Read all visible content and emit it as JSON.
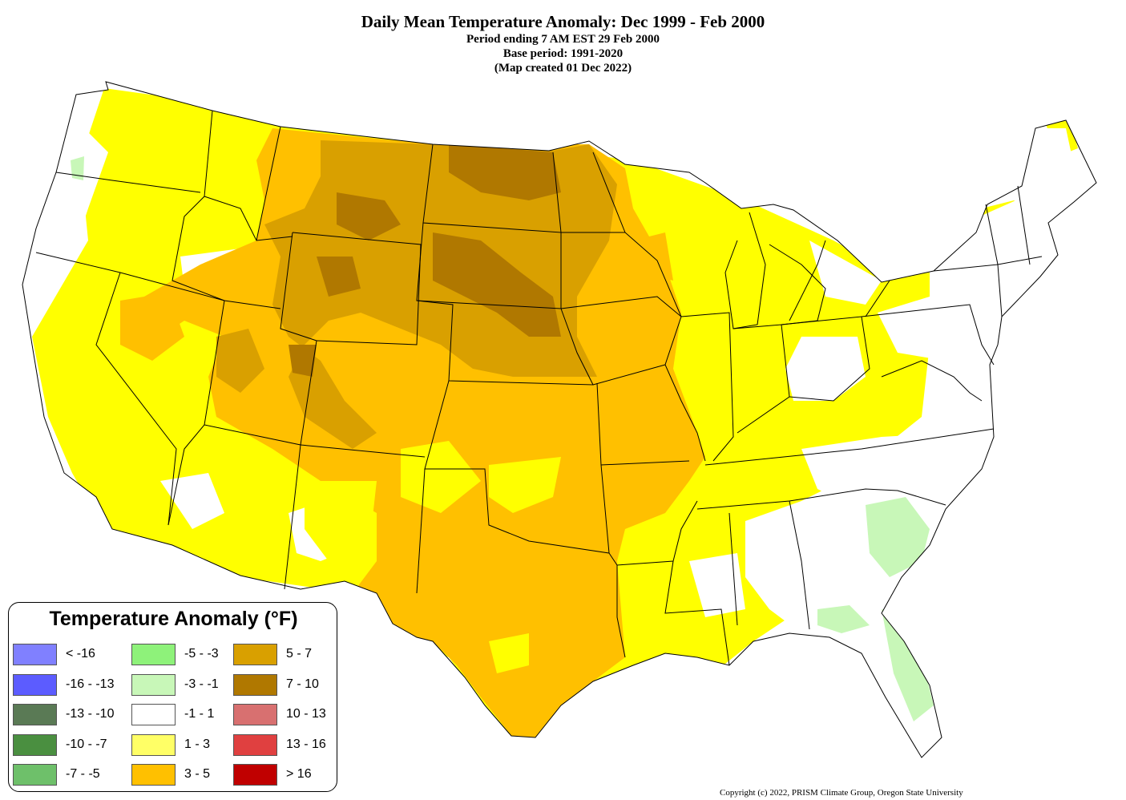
{
  "header": {
    "title": "Daily Mean Temperature Anomaly: Dec 1999 - Feb 2000",
    "line2": "Period ending 7 AM EST 29 Feb 2000",
    "line3": "Base period: 1991-2020",
    "line4": "(Map created 01 Dec 2022)"
  },
  "legend": {
    "title": "Temperature Anomaly (°F)",
    "columns": [
      [
        {
          "range": "< -16",
          "color": "#8080ff"
        },
        {
          "range": "-16 - -13",
          "color": "#5c5cff"
        },
        {
          "range": "-13 - -10",
          "color": "#5a7a55"
        },
        {
          "range": "-10 - -7",
          "color": "#4a8f40"
        },
        {
          "range": "-7 - -5",
          "color": "#6ec06a"
        }
      ],
      [
        {
          "range": "-5 - -3",
          "color": "#8ef27a"
        },
        {
          "range": "-3 - -1",
          "color": "#c8f7b8"
        },
        {
          "range": "-1 - 1",
          "color": "#ffffff"
        },
        {
          "range": "1 - 3",
          "color": "#ffff66"
        },
        {
          "range": "3 - 5",
          "color": "#ffc000"
        }
      ],
      [
        {
          "range": "5 - 7",
          "color": "#d9a000"
        },
        {
          "range": "7 - 10",
          "color": "#b07800"
        },
        {
          "range": "10 - 13",
          "color": "#d87070"
        },
        {
          "range": "13 - 16",
          "color": "#e04040"
        },
        {
          "range": "> 16",
          "color": "#c00000"
        }
      ]
    ]
  },
  "copyright": "Copyright (c) 2022, PRISM Climate Group, Oregon State University"
}
